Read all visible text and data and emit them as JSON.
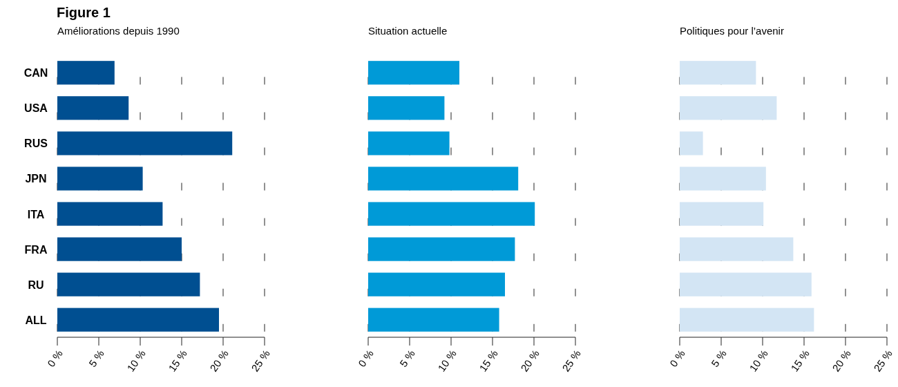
{
  "chart_data": [
    {
      "type": "bar",
      "orientation": "horizontal",
      "title": "Figure 1",
      "subtitle": "Améliorations depuis 1990",
      "categories": [
        "CAN",
        "USA",
        "RUS",
        "JPN",
        "ITA",
        "FRA",
        "RU",
        "ALL"
      ],
      "values": [
        6.9,
        8.6,
        21.1,
        10.3,
        12.7,
        15.0,
        17.2,
        19.5
      ],
      "color": "#004f91",
      "xlim": [
        0,
        25
      ],
      "xticks": [
        {
          "value": 0,
          "label": "0 %"
        },
        {
          "value": 5,
          "label": "5 %"
        },
        {
          "value": 10,
          "label": "10 %"
        },
        {
          "value": 15,
          "label": "15 %"
        },
        {
          "value": 20,
          "label": "20 %"
        },
        {
          "value": 25,
          "label": "25 %"
        }
      ],
      "grid": "x"
    },
    {
      "type": "bar",
      "orientation": "horizontal",
      "subtitle": "Situation actuelle",
      "categories": [
        null,
        null,
        null,
        null,
        null,
        null,
        null,
        null
      ],
      "values": [
        11.0,
        9.2,
        9.8,
        18.1,
        20.1,
        17.7,
        16.5,
        15.8
      ],
      "color": "#009ad7",
      "xlim": [
        0,
        25
      ],
      "xticks": [
        {
          "value": 0,
          "label": "0 %"
        },
        {
          "value": 5,
          "label": "5 %"
        },
        {
          "value": 10,
          "label": "10 %"
        },
        {
          "value": 15,
          "label": "15 %"
        },
        {
          "value": 20,
          "label": "20 %"
        },
        {
          "value": 25,
          "label": "25 %"
        }
      ],
      "grid": "x",
      "tick_labels": "x"
    },
    {
      "type": "bar",
      "orientation": "horizontal",
      "subtitle": "Politiques pour l’avenir",
      "categories": [
        null,
        null,
        null,
        null,
        null,
        null,
        null,
        null
      ],
      "values": [
        9.2,
        11.7,
        2.8,
        10.4,
        10.1,
        13.7,
        15.9,
        16.2
      ],
      "color": "#d3e5f4",
      "xlim": [
        0,
        25
      ],
      "xticks": [
        {
          "value": 0,
          "label": "0 %"
        },
        {
          "value": 5,
          "label": "5 %"
        },
        {
          "value": 10,
          "label": "10 %"
        },
        {
          "value": 15,
          "label": "15 %"
        },
        {
          "value": 20,
          "label": "20 %"
        },
        {
          "value": 25,
          "label": "25 %"
        }
      ],
      "grid": "x",
      "tick_labels": "x"
    }
  ]
}
